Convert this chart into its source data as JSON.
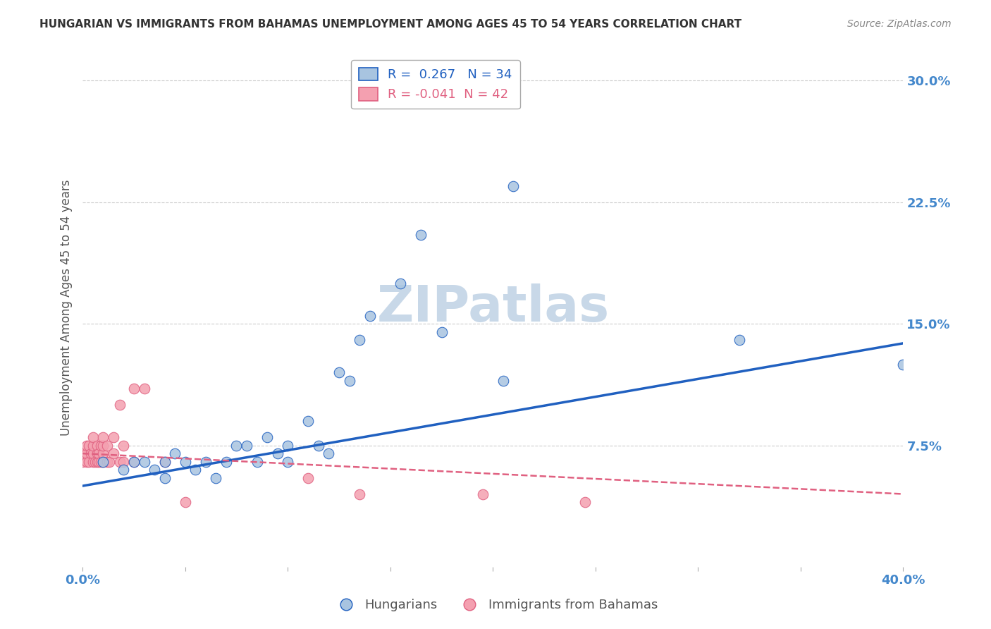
{
  "title": "HUNGARIAN VS IMMIGRANTS FROM BAHAMAS UNEMPLOYMENT AMONG AGES 45 TO 54 YEARS CORRELATION CHART",
  "source": "Source: ZipAtlas.com",
  "ylabel": "Unemployment Among Ages 45 to 54 years",
  "xlim": [
    0.0,
    0.4
  ],
  "ylim": [
    0.0,
    0.32
  ],
  "xticks": [
    0.0,
    0.05,
    0.1,
    0.15,
    0.2,
    0.25,
    0.3,
    0.35,
    0.4
  ],
  "xticklabels": [
    "0.0%",
    "",
    "",
    "",
    "",
    "",
    "",
    "",
    "40.0%"
  ],
  "yticks_right": [
    0.0,
    0.075,
    0.15,
    0.225,
    0.3
  ],
  "yticklabels_right": [
    "",
    "7.5%",
    "15.0%",
    "22.5%",
    "30.0%"
  ],
  "blue_scatter_x": [
    0.01,
    0.02,
    0.025,
    0.03,
    0.035,
    0.04,
    0.04,
    0.045,
    0.05,
    0.055,
    0.06,
    0.065,
    0.07,
    0.075,
    0.08,
    0.085,
    0.09,
    0.095,
    0.1,
    0.1,
    0.11,
    0.115,
    0.12,
    0.125,
    0.13,
    0.135,
    0.14,
    0.155,
    0.165,
    0.175,
    0.205,
    0.21,
    0.32,
    0.4
  ],
  "blue_scatter_y": [
    0.065,
    0.06,
    0.065,
    0.065,
    0.06,
    0.065,
    0.055,
    0.07,
    0.065,
    0.06,
    0.065,
    0.055,
    0.065,
    0.075,
    0.075,
    0.065,
    0.08,
    0.07,
    0.065,
    0.075,
    0.09,
    0.075,
    0.07,
    0.12,
    0.115,
    0.14,
    0.155,
    0.175,
    0.205,
    0.145,
    0.115,
    0.235,
    0.14,
    0.125
  ],
  "pink_scatter_x": [
    0.0,
    0.0,
    0.002,
    0.002,
    0.002,
    0.003,
    0.003,
    0.004,
    0.005,
    0.005,
    0.005,
    0.005,
    0.006,
    0.007,
    0.007,
    0.007,
    0.008,
    0.008,
    0.009,
    0.009,
    0.01,
    0.01,
    0.01,
    0.01,
    0.012,
    0.012,
    0.013,
    0.015,
    0.015,
    0.018,
    0.018,
    0.02,
    0.02,
    0.025,
    0.025,
    0.03,
    0.04,
    0.05,
    0.11,
    0.135,
    0.195,
    0.245
  ],
  "pink_scatter_y": [
    0.065,
    0.07,
    0.065,
    0.07,
    0.075,
    0.065,
    0.075,
    0.07,
    0.065,
    0.07,
    0.075,
    0.08,
    0.065,
    0.065,
    0.07,
    0.075,
    0.065,
    0.07,
    0.065,
    0.075,
    0.065,
    0.07,
    0.075,
    0.08,
    0.065,
    0.075,
    0.065,
    0.07,
    0.08,
    0.065,
    0.1,
    0.065,
    0.075,
    0.065,
    0.11,
    0.11,
    0.065,
    0.04,
    0.055,
    0.045,
    0.045,
    0.04
  ],
  "blue_R": 0.267,
  "blue_N": 34,
  "pink_R": -0.041,
  "pink_N": 42,
  "blue_color": "#a8c4e0",
  "pink_color": "#f4a0b0",
  "blue_line_color": "#2060c0",
  "pink_line_color": "#e06080",
  "blue_line_y0": 0.05,
  "blue_line_y1": 0.138,
  "pink_line_y0": 0.07,
  "pink_line_y1": 0.045,
  "watermark": "ZIPatlas",
  "watermark_color": "#c8d8e8",
  "grid_color": "#cccccc",
  "title_color": "#333333",
  "axis_label_color": "#555555",
  "right_tick_color": "#4488cc",
  "bottom_tick_color": "#4488cc"
}
